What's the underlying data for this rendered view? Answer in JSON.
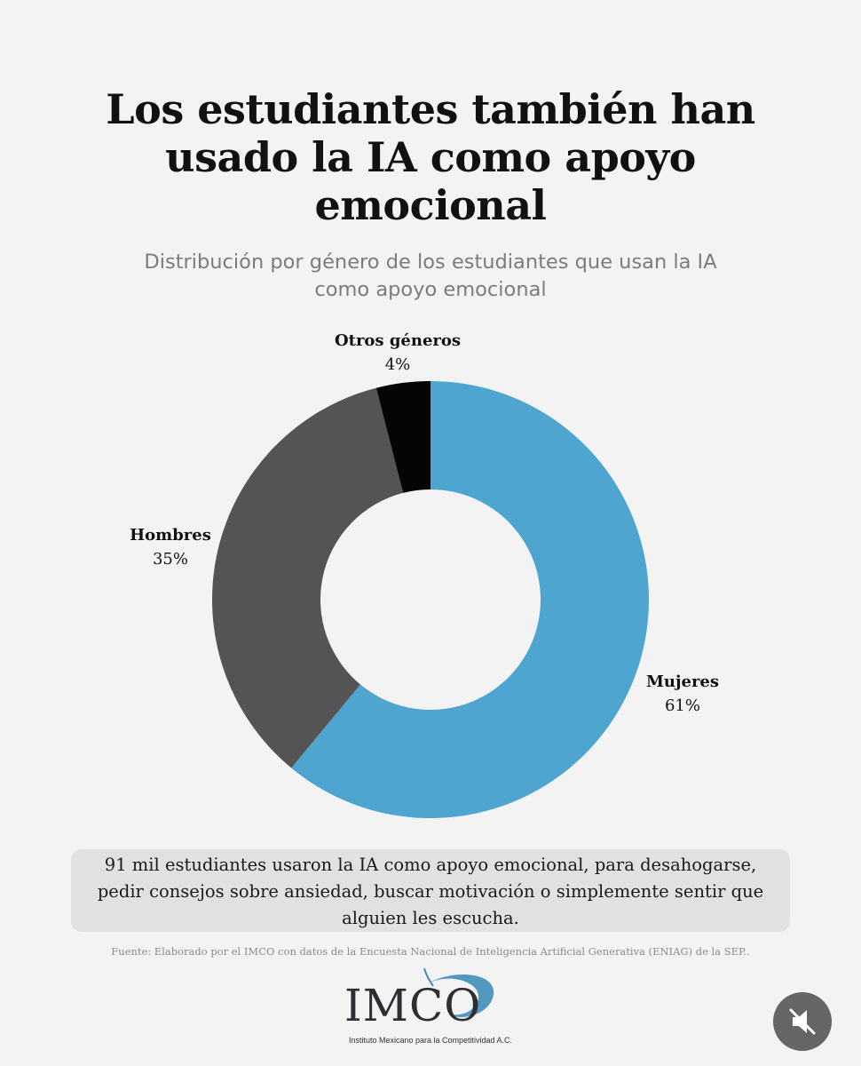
{
  "title": "Los estudiantes también han usado la IA como apoyo emocional",
  "subtitle": "Distribución por género de los estudiantes que usan la IA como apoyo emocional",
  "chart_data": {
    "type": "pie",
    "categories": [
      "Mujeres",
      "Hombres",
      "Otros géneros"
    ],
    "values": [
      61,
      35,
      4
    ],
    "value_labels": [
      "61%",
      "35%",
      "4%"
    ],
    "colors": [
      "#4ea5cf",
      "#545457",
      "#050505"
    ],
    "title": "Distribución por género de los estudiantes que usan la IA como apoyo emocional",
    "legend": "none"
  },
  "note": "91 mil estudiantes usaron la IA como apoyo emocional, para desahogarse, pedir consejos sobre ansiedad, buscar motivación o simplemente sentir que alguien les escucha.",
  "source": "Fuente: Elaborado por el IMCO con datos de la Encuesta Nacional de Inteligencia Artificial Generativa (ENIAG) de la SEP..",
  "logo": {
    "word": "IMCO",
    "subtitle": "Instituto Mexicano para la Competitividad A.C.",
    "accent": "#3f8fb8"
  },
  "controls": {
    "mute_icon": "speaker-muted-icon"
  }
}
